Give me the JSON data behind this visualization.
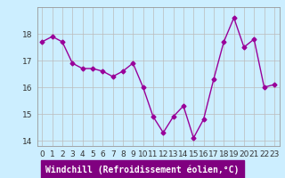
{
  "x": [
    0,
    1,
    2,
    3,
    4,
    5,
    6,
    7,
    8,
    9,
    10,
    11,
    12,
    13,
    14,
    15,
    16,
    17,
    18,
    19,
    20,
    21,
    22,
    23
  ],
  "y": [
    17.7,
    17.9,
    17.7,
    16.9,
    16.7,
    16.7,
    16.6,
    16.4,
    16.6,
    16.9,
    16.0,
    14.9,
    14.3,
    14.9,
    15.3,
    14.1,
    14.8,
    16.3,
    17.7,
    18.6,
    17.5,
    17.8,
    16.0,
    16.1
  ],
  "line_color": "#990099",
  "marker": "D",
  "marker_size": 2.5,
  "bg_color": "#cceeff",
  "grid_color": "#bbbbbb",
  "xlabel": "Windchill (Refroidissement éolien,°C)",
  "ylim": [
    13.8,
    19.0
  ],
  "xlim": [
    -0.5,
    23.5
  ],
  "yticks": [
    14,
    15,
    16,
    17,
    18
  ],
  "xticks": [
    0,
    1,
    2,
    3,
    4,
    5,
    6,
    7,
    8,
    9,
    10,
    11,
    12,
    13,
    14,
    15,
    16,
    17,
    18,
    19,
    20,
    21,
    22,
    23
  ],
  "xlabel_fontsize": 7,
  "tick_fontsize": 6.5,
  "linewidth": 1.0,
  "xlabel_bg": "#800080",
  "xlabel_fg": "#ffffff"
}
